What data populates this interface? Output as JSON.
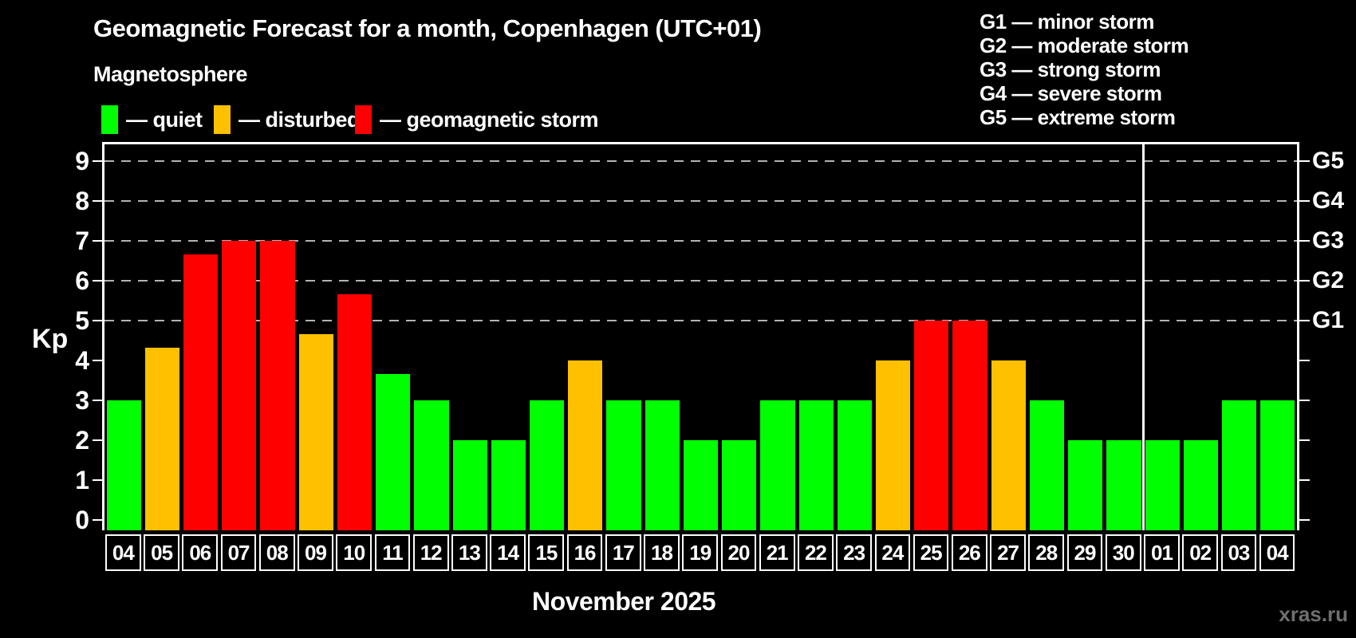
{
  "header": {
    "title": "Geomagnetic Forecast for a month, Copenhagen (UTC+01)",
    "subtitle": "Magnetosphere"
  },
  "legend": {
    "items": [
      {
        "label": "— quiet",
        "status": "quiet"
      },
      {
        "label": "— disturbed",
        "status": "disturbed"
      },
      {
        "label": "— geomagnetic storm",
        "status": "storm"
      }
    ]
  },
  "colors": {
    "quiet": "#00ff00",
    "disturbed": "#ffc000",
    "storm": "#ff0000",
    "axis": "#ffffff",
    "gridline": "#b3b3b3",
    "watermark_gray": "#6f6f6f"
  },
  "storm_scale_legend": [
    "G1 — minor storm",
    "G2 — moderate storm",
    "G3 — strong storm",
    "G4 — severe storm",
    "G5 — extreme storm"
  ],
  "watermark": "xras.ru",
  "chart_data": {
    "type": "bar",
    "title": "Geomagnetic Forecast for a month, Copenhagen (UTC+01)",
    "ylabel": "Kp",
    "ylim": [
      0,
      9
    ],
    "y_ticks": [
      0,
      1,
      2,
      3,
      4,
      5,
      6,
      7,
      8,
      9
    ],
    "gridlines_kp": [
      5,
      6,
      7,
      8,
      9
    ],
    "grid_style": "dashed",
    "legend_position": "top-left",
    "right_axis": [
      {
        "label": "G1",
        "kp": 5
      },
      {
        "label": "G2",
        "kp": 6
      },
      {
        "label": "G3",
        "kp": 7
      },
      {
        "label": "G4",
        "kp": 8
      },
      {
        "label": "G5",
        "kp": 9
      }
    ],
    "month_label": "November 2025",
    "month_boundary_after_index": 26,
    "categories": [
      "04",
      "05",
      "06",
      "07",
      "08",
      "09",
      "10",
      "11",
      "12",
      "13",
      "14",
      "15",
      "16",
      "17",
      "18",
      "19",
      "20",
      "21",
      "22",
      "23",
      "24",
      "25",
      "26",
      "27",
      "28",
      "29",
      "30",
      "01",
      "02",
      "03",
      "04"
    ],
    "values": [
      3,
      4.33,
      6.67,
      7,
      7,
      4.67,
      5.67,
      3.67,
      3,
      2,
      2,
      3,
      4,
      3,
      3,
      2,
      2,
      3,
      3,
      3,
      4,
      5,
      5,
      4,
      3,
      2,
      2,
      2,
      2,
      3,
      3
    ],
    "status": [
      "quiet",
      "disturbed",
      "storm",
      "storm",
      "storm",
      "disturbed",
      "storm",
      "quiet",
      "quiet",
      "quiet",
      "quiet",
      "quiet",
      "disturbed",
      "quiet",
      "quiet",
      "quiet",
      "quiet",
      "quiet",
      "quiet",
      "quiet",
      "disturbed",
      "storm",
      "storm",
      "disturbed",
      "quiet",
      "quiet",
      "quiet",
      "quiet",
      "quiet",
      "quiet",
      "quiet"
    ]
  }
}
